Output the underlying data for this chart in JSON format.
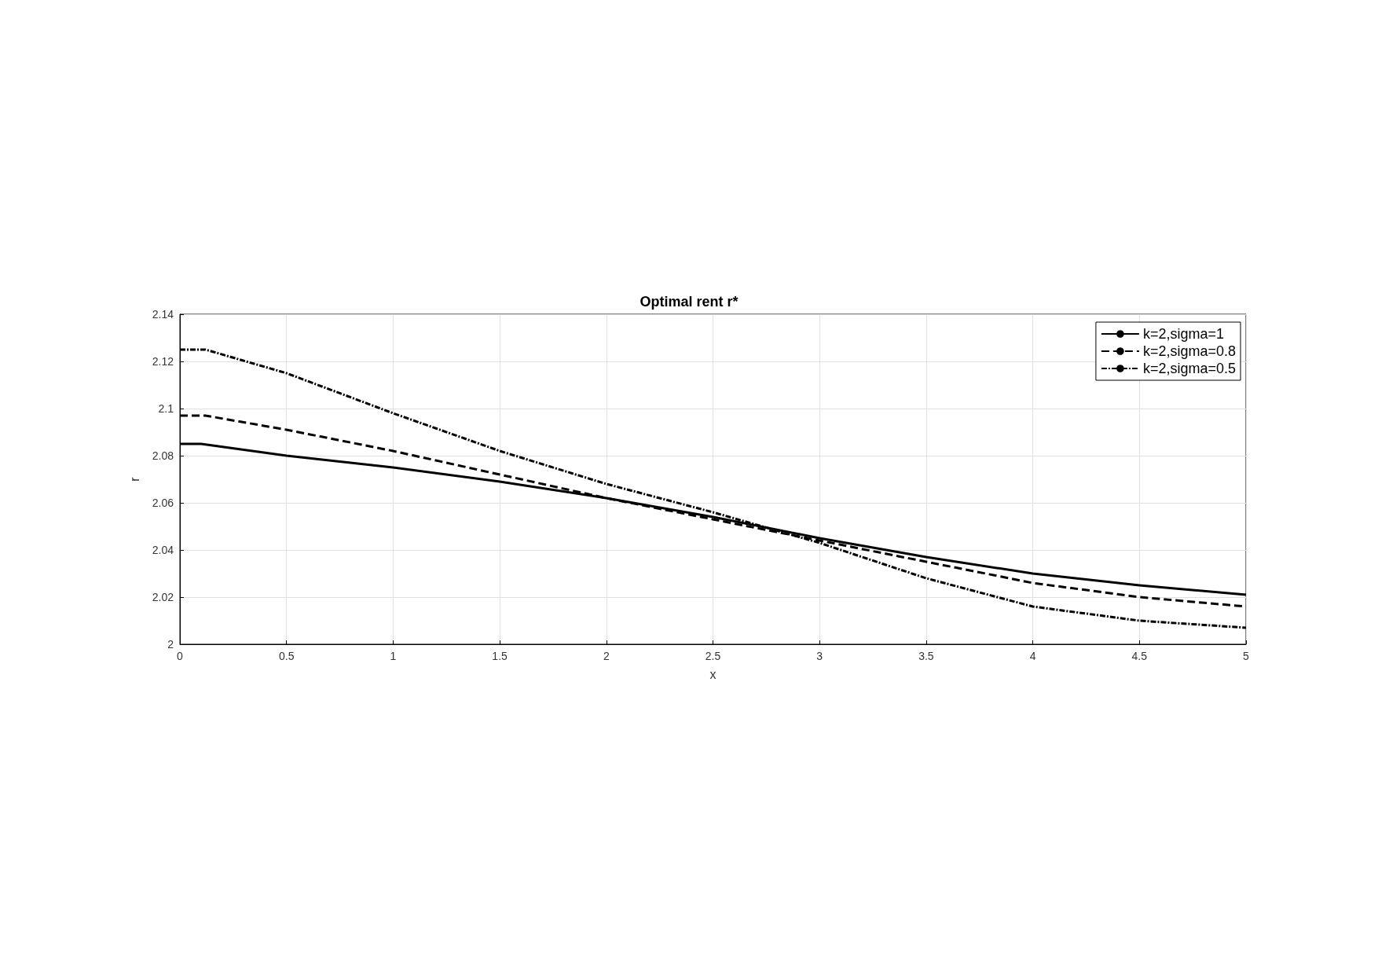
{
  "chart_data": {
    "type": "line",
    "title": "Optimal rent r*",
    "xlabel": "x",
    "ylabel": "r",
    "xlim": [
      0,
      5
    ],
    "xticks": [
      0,
      0.5,
      1,
      1.5,
      2,
      2.5,
      3,
      3.5,
      4,
      4.5,
      5
    ],
    "ylim": [
      2,
      2.14
    ],
    "yticks": [
      2,
      2.02,
      2.04,
      2.06,
      2.08,
      2.1,
      2.12,
      2.14
    ],
    "grid": true,
    "legend": "top right",
    "marker": "none",
    "series": [
      {
        "name": "k=2,sigma=1",
        "color": "#000000",
        "line_style": "solid",
        "x": [
          0,
          0.1,
          0.5,
          1,
          1.5,
          2,
          2.5,
          3,
          3.5,
          4,
          4.5,
          5
        ],
        "values": [
          2.085,
          2.085,
          2.08,
          2.075,
          2.069,
          2.062,
          2.054,
          2.045,
          2.037,
          2.03,
          2.025,
          2.021
        ]
      },
      {
        "name": "k=2,sigma=0.8",
        "color": "#000000",
        "line_style": "dashed",
        "x": [
          0,
          0.12,
          0.5,
          1,
          1.5,
          2,
          2.5,
          3,
          3.5,
          4,
          4.5,
          5
        ],
        "values": [
          2.097,
          2.097,
          2.091,
          2.082,
          2.072,
          2.062,
          2.053,
          2.044,
          2.035,
          2.026,
          2.02,
          2.016
        ]
      },
      {
        "name": "k=2,sigma=0.5",
        "color": "#000000",
        "line_style": "dotted",
        "x": [
          0,
          0.12,
          0.5,
          1,
          1.5,
          2,
          2.5,
          3,
          3.5,
          4,
          4.5,
          5
        ],
        "values": [
          2.125,
          2.125,
          2.115,
          2.098,
          2.082,
          2.068,
          2.056,
          2.043,
          2.028,
          2.016,
          2.01,
          2.007
        ]
      }
    ]
  }
}
